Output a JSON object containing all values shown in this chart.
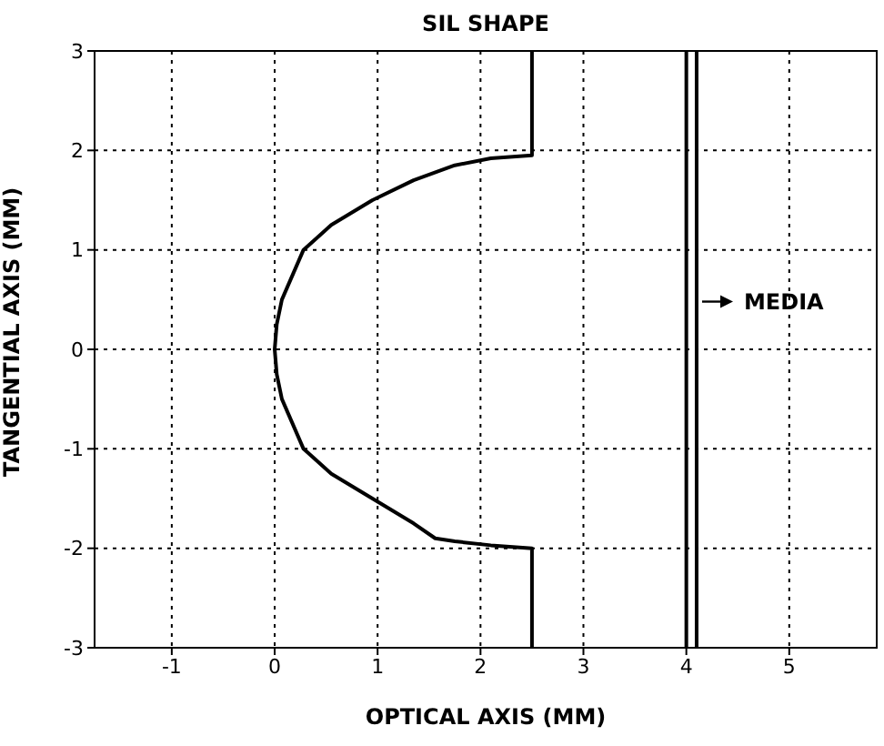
{
  "chart_data": {
    "type": "line",
    "title": "SIL SHAPE",
    "xlabel": "OPTICAL AXIS (MM)",
    "ylabel": "TANGENTIAL AXIS (MM)",
    "xlim": [
      -1.75,
      5.85
    ],
    "xticks": [
      -1,
      0,
      1,
      2,
      3,
      4,
      5
    ],
    "ylim": [
      -3,
      3
    ],
    "yticks": [
      -3,
      -2,
      -1,
      0,
      1,
      2,
      3
    ],
    "grid": true,
    "marker": "none",
    "line_style": "solid",
    "series": [
      {
        "color": "#000000",
        "x": [
          2.5,
          2.5,
          2.1,
          1.75,
          1.35,
          0.95,
          0.55,
          0.28,
          0.07,
          0.02,
          0,
          0.02,
          0.07,
          0.28,
          0.55,
          0.95,
          1.35,
          1.56,
          1.75,
          2.1,
          2.5,
          2.5
        ],
        "values": [
          3,
          1.95,
          1.92,
          1.85,
          1.7,
          1.5,
          1.25,
          1,
          0.5,
          0.25,
          0,
          -0.25,
          -0.5,
          -1,
          -1.25,
          -1.5,
          -1.75,
          -1.9,
          -1.93,
          -1.97,
          -2,
          -3
        ]
      }
    ],
    "ref_lines": [
      {
        "axis": "x",
        "value": 4,
        "color": "#000000",
        "line_style": "solid"
      },
      {
        "axis": "x",
        "value": 4.1,
        "color": "#000000",
        "line_style": "solid"
      }
    ],
    "annotations": [
      "MEDIA"
    ]
  }
}
